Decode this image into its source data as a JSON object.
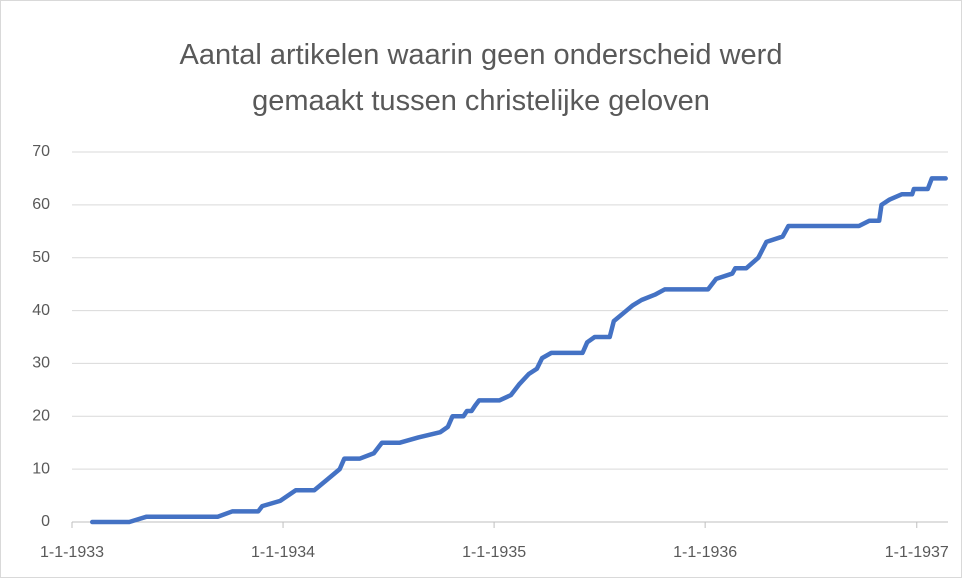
{
  "chart_data": {
    "type": "line",
    "title": "Aantal artikelen waarin geen onderscheid werd gemaakt tussen christelijke geloven",
    "color": "#4472c4",
    "x": [
      "1933-02-05",
      "1933-04-10",
      "1933-05-10",
      "1933-09-10",
      "1933-10-05",
      "1933-11-19",
      "1933-11-26",
      "1933-12-27",
      "1934-01-23",
      "1934-02-24",
      "1934-03-18",
      "1934-04-09",
      "1934-04-17",
      "1934-05-14",
      "1934-06-07",
      "1934-06-14",
      "1934-06-21",
      "1934-07-22",
      "1934-08-23",
      "1934-09-30",
      "1934-10-13",
      "1934-10-21",
      "1934-11-09",
      "1934-11-15",
      "1934-11-23",
      "1934-11-29",
      "1934-12-06",
      "1935-01-10",
      "1935-01-30",
      "1935-02-13",
      "1935-03-02",
      "1935-03-16",
      "1935-03-25",
      "1935-04-10",
      "1935-06-03",
      "1935-06-11",
      "1935-06-24",
      "1935-07-20",
      "1935-07-27",
      "1935-08-18",
      "1935-08-29",
      "1935-09-13",
      "1935-10-06",
      "1935-10-23",
      "1936-01-06",
      "1936-01-20",
      "1936-02-17",
      "1936-02-22",
      "1936-03-12",
      "1936-04-02",
      "1936-04-16",
      "1936-05-14",
      "1936-05-24",
      "1936-09-23",
      "1936-10-11",
      "1936-10-28",
      "1936-11-01",
      "1936-11-15",
      "1936-12-06",
      "1936-12-24",
      "1936-12-27",
      "1937-01-20",
      "1937-01-27",
      "1937-02-20"
    ],
    "values": [
      0,
      0,
      1,
      1,
      2,
      2,
      3,
      4,
      6,
      6,
      8,
      10,
      12,
      12,
      13,
      14,
      15,
      15,
      16,
      17,
      18,
      20,
      20,
      21,
      21,
      22,
      23,
      23,
      24,
      26,
      28,
      29,
      31,
      32,
      32,
      34,
      35,
      35,
      38,
      40,
      41,
      42,
      43,
      44,
      44,
      46,
      47,
      48,
      48,
      50,
      53,
      54,
      56,
      56,
      57,
      57,
      60,
      61,
      62,
      62,
      63,
      63,
      65,
      65
    ],
    "xlim": [
      "1933-01-01",
      "1937-02-24"
    ],
    "xticks": [
      {
        "value": "1933-01-01",
        "label": "1-1-1933"
      },
      {
        "value": "1934-01-01",
        "label": "1-1-1934"
      },
      {
        "value": "1935-01-01",
        "label": "1-1-1935"
      },
      {
        "value": "1936-01-01",
        "label": "1-1-1936"
      },
      {
        "value": "1937-01-01",
        "label": "1-1-1937"
      }
    ],
    "ylim": [
      0,
      70
    ],
    "yticks": [
      0,
      10,
      20,
      30,
      40,
      50,
      60,
      70
    ],
    "grid": true
  }
}
